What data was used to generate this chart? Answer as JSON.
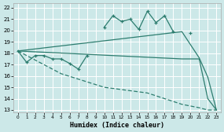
{
  "bg_color": "#cce8e8",
  "grid_color": "#ffffff",
  "line_color": "#2d7d6f",
  "xlabel": "Humidex (Indice chaleur)",
  "xlim": [
    -0.5,
    23.5
  ],
  "ylim": [
    12.8,
    22.4
  ],
  "ytick_vals": [
    13,
    14,
    15,
    16,
    17,
    18,
    19,
    20,
    21,
    22
  ],
  "xtick_vals": [
    0,
    1,
    2,
    3,
    4,
    5,
    6,
    7,
    8,
    9,
    10,
    11,
    12,
    13,
    14,
    15,
    16,
    17,
    18,
    19,
    20,
    21,
    22,
    23
  ],
  "jagged_y": [
    18.2,
    17.2,
    17.8,
    17.8,
    17.5,
    17.5,
    17.1,
    16.6,
    17.8,
    null,
    20.3,
    21.3,
    20.8,
    21.0,
    20.1,
    21.7,
    20.7,
    21.3,
    19.9,
    null,
    19.8,
    null,
    null,
    null
  ],
  "upper_x": [
    0,
    19,
    21,
    22,
    23
  ],
  "upper_y": [
    18.2,
    19.9,
    17.6,
    15.9,
    13.0
  ],
  "flat_x": [
    0,
    19,
    20,
    21,
    22,
    23
  ],
  "flat_y": [
    18.2,
    17.5,
    17.5,
    17.5,
    14.0,
    13.0
  ],
  "lower_x": [
    0,
    5,
    10,
    15,
    19,
    21,
    22,
    23
  ],
  "lower_y": [
    18.2,
    16.2,
    15.0,
    14.5,
    13.5,
    13.2,
    13.0,
    13.0
  ]
}
